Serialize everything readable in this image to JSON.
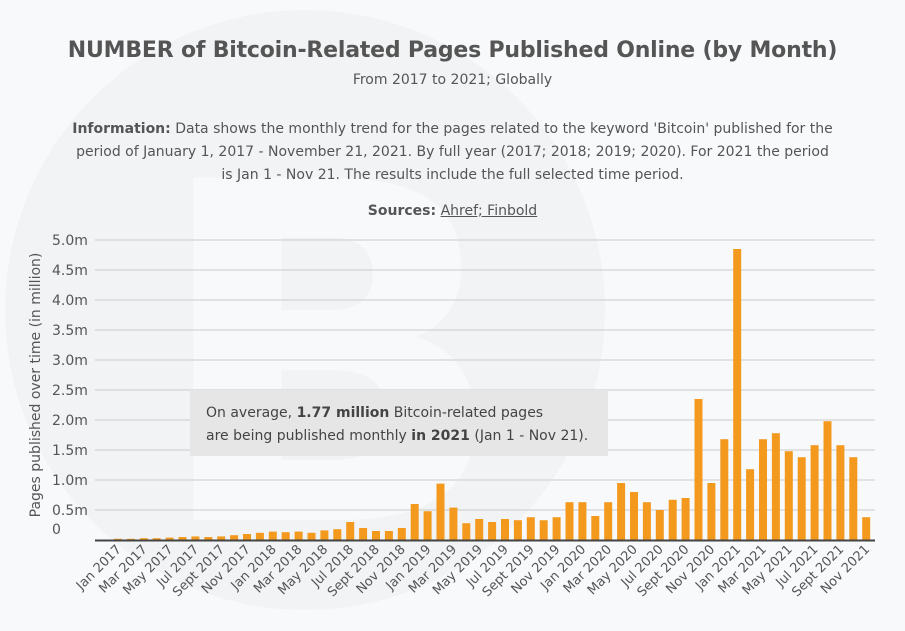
{
  "header": {
    "title": "NUMBER of Bitcoin-Related Pages Published Online (by Month)",
    "subtitle": "From 2017 to 2021; Globally"
  },
  "info": {
    "label": "Information:",
    "text": "Data shows the monthly trend for the pages related to the keyword 'Bitcoin' published for the period of January 1, 2017 - November 21, 2021. By full year (2017; 2018; 2019; 2020). For 2021 the period is Jan 1 - Nov 21. The results include the full selected time period."
  },
  "sources": {
    "label": "Sources:",
    "links": "Ahref; Finbold"
  },
  "annotation": {
    "line1_a": "On average, ",
    "line1_bold": "1.77 million",
    "line1_b": " Bitcoin-related pages",
    "line2_a": "are being published monthly ",
    "line2_bold": "in 2021",
    "line2_b": " (Jan 1 - Nov 21)."
  },
  "colors": {
    "bar": "#f39a1e",
    "grid": "#cccccc",
    "text": "#555555"
  },
  "chart_data": {
    "type": "bar",
    "ylabel": "Pages published over time (in million)",
    "ylim": [
      0,
      5.0
    ],
    "yticks": [
      "0",
      "0.5m",
      "1.0m",
      "1.5m",
      "2.0m",
      "2.5m",
      "3.0m",
      "3.5m",
      "4.0m",
      "4.5m",
      "5.0m"
    ],
    "categories": [
      "Jan 2017",
      "Feb 2017",
      "Mar 2017",
      "Apr 2017",
      "May 2017",
      "Jun 2017",
      "Jul 2017",
      "Aug 2017",
      "Sept 2017",
      "Oct 2017",
      "Nov 2017",
      "Dec 2017",
      "Jan 2018",
      "Feb 2018",
      "Mar 2018",
      "Apr 2018",
      "May 2018",
      "Jun 2018",
      "Jul 2018",
      "Aug 2018",
      "Sept 2018",
      "Oct 2018",
      "Nov 2018",
      "Dec 2018",
      "Jan 2019",
      "Feb 2019",
      "Mar 2019",
      "Apr 2019",
      "May 2019",
      "Jun 2019",
      "Jul 2019",
      "Aug 2019",
      "Sept 2019",
      "Oct 2019",
      "Nov 2019",
      "Dec 2019",
      "Jan 2020",
      "Feb 2020",
      "Mar 2020",
      "Apr 2020",
      "May 2020",
      "Jun 2020",
      "Jul 2020",
      "Aug 2020",
      "Sept 2020",
      "Oct 2020",
      "Nov 2020",
      "Dec 2020",
      "Jan 2021",
      "Feb 2021",
      "Mar 2021",
      "Apr 2021",
      "May 2021",
      "Jun 2021",
      "Jul 2021",
      "Aug 2021",
      "Sept 2021",
      "Oct 2021",
      "Nov 2021"
    ],
    "xticklabels": [
      "Jan 2017",
      "Mar 2017",
      "May 2017",
      "Jul 2017",
      "Sept 2017",
      "Nov 2017",
      "Jan 2018",
      "Mar 2018",
      "May 2018",
      "Jul 2018",
      "Sept 2018",
      "Nov 2018",
      "Jan 2019",
      "Mar 2019",
      "May 2019",
      "Jul 2019",
      "Sept 2019",
      "Nov 2019",
      "Jan 2020",
      "Mar 2020",
      "May 2020",
      "Jul 2020",
      "Sept 2020",
      "Nov 2020",
      "Jan 2021",
      "Mar 2021",
      "May 2021",
      "Jul 2021",
      "Sept 2021",
      "Nov 2021"
    ],
    "values": [
      0.02,
      0.02,
      0.03,
      0.03,
      0.04,
      0.05,
      0.06,
      0.05,
      0.06,
      0.08,
      0.1,
      0.12,
      0.14,
      0.13,
      0.14,
      0.12,
      0.16,
      0.18,
      0.3,
      0.2,
      0.15,
      0.15,
      0.2,
      0.6,
      0.48,
      0.94,
      0.54,
      0.28,
      0.35,
      0.3,
      0.35,
      0.33,
      0.38,
      0.33,
      0.38,
      0.63,
      0.63,
      0.4,
      0.63,
      0.95,
      0.8,
      0.63,
      0.5,
      0.67,
      0.7,
      2.35,
      0.95,
      1.68,
      4.85,
      1.18,
      1.68,
      1.78,
      1.48,
      1.38,
      1.58,
      1.98,
      1.58,
      1.38,
      0.38
    ]
  }
}
